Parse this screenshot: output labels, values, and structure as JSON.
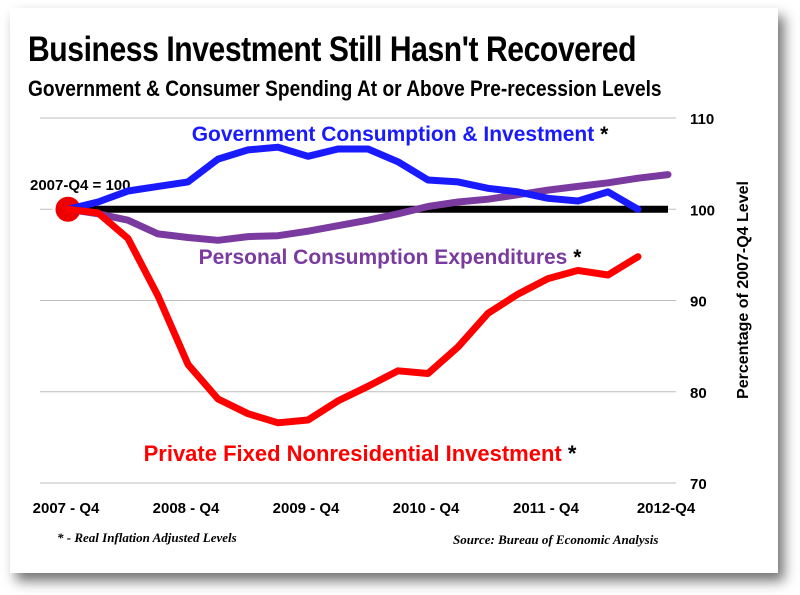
{
  "title": "Business Investment Still Hasn't Recovered",
  "subtitle": "Government & Consumer Spending At or Above Pre-recession Levels",
  "footnote": "* - Real Inflation Adjusted Levels",
  "source": "Source: Bureau of Economic Analysis",
  "chart_data": {
    "type": "line",
    "ylabel": "Percentage of 2007-Q4 Level",
    "ylim": [
      70,
      110
    ],
    "yticks": [
      110,
      100,
      90,
      80,
      70
    ],
    "grid": true,
    "x": [
      "2007-Q4",
      "2008-Q1",
      "2008-Q2",
      "2008-Q3",
      "2008-Q4",
      "2009-Q1",
      "2009-Q2",
      "2009-Q3",
      "2009-Q4",
      "2010-Q1",
      "2010-Q2",
      "2010-Q3",
      "2010-Q4",
      "2011-Q1",
      "2011-Q2",
      "2011-Q3",
      "2011-Q4",
      "2012-Q1",
      "2012-Q2",
      "2012-Q3",
      "2012-Q4"
    ],
    "xtick_labels": [
      {
        "label": "2007 - Q4",
        "x": "2007-Q4"
      },
      {
        "label": "2008 - Q4",
        "x": "2008-Q4"
      },
      {
        "label": "2009 - Q4",
        "x": "2009-Q4"
      },
      {
        "label": "2010 - Q4",
        "x": "2010-Q4"
      },
      {
        "label": "2011 - Q4",
        "x": "2011-Q4"
      },
      {
        "label": "2012-Q4",
        "x": "2012-Q4"
      }
    ],
    "reference_line": 100,
    "reference_label": "2007-Q4 = 100",
    "series": [
      {
        "name": "Government Consumption & Investment",
        "asterisk": "*",
        "color": "#1a1aff",
        "values": [
          100.0,
          100.8,
          102.0,
          102.5,
          103.0,
          105.5,
          106.5,
          106.8,
          105.8,
          106.6,
          106.6,
          105.2,
          103.2,
          103.0,
          102.3,
          101.9,
          101.2,
          100.9,
          101.9,
          100.0,
          null
        ]
      },
      {
        "name": "Personal Consumption Expenditures",
        "asterisk": "*",
        "color": "#7a3aa0",
        "values": [
          100.0,
          99.5,
          98.8,
          97.3,
          96.9,
          96.6,
          97.0,
          97.1,
          97.6,
          98.2,
          98.8,
          99.5,
          100.3,
          100.8,
          101.1,
          101.6,
          102.1,
          102.5,
          102.9,
          103.4,
          103.8
        ]
      },
      {
        "name": "Private Fixed Nonresidential Investment",
        "asterisk": "*",
        "color": "#ff0000",
        "values": [
          100.0,
          99.6,
          96.8,
          90.5,
          83.0,
          79.2,
          77.6,
          76.6,
          76.9,
          79.0,
          80.6,
          82.3,
          82.0,
          84.9,
          88.6,
          90.7,
          92.4,
          93.3,
          92.8,
          94.8,
          null
        ]
      }
    ]
  }
}
